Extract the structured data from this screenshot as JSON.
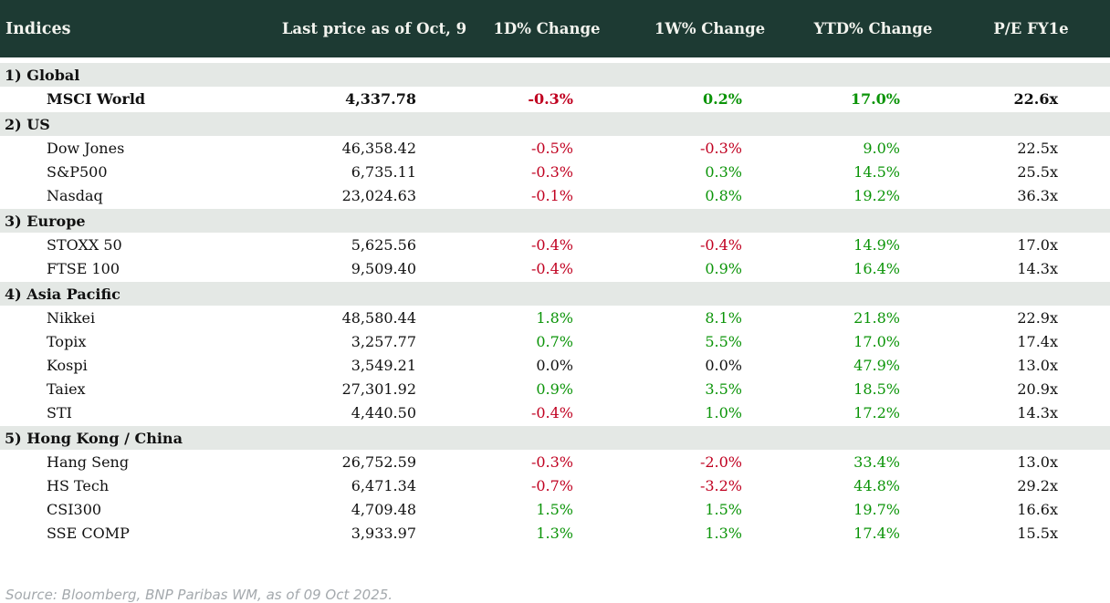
{
  "table": {
    "title": "Indices",
    "columns": [
      "Last price as of Oct, 9",
      "1D% Change",
      "1W% Change",
      "YTD% Change",
      "P/E FY1e"
    ],
    "sections": [
      {
        "label": "1) Global",
        "rows": [
          {
            "name": "MSCI World",
            "price": "4,337.78",
            "d1": "-0.3%",
            "w1": "0.2%",
            "ytd": "17.0%",
            "pe": "22.6x",
            "emphasis": true
          }
        ]
      },
      {
        "label": "2) US",
        "rows": [
          {
            "name": "Dow Jones",
            "price": "46,358.42",
            "d1": "-0.5%",
            "w1": "-0.3%",
            "ytd": "9.0%",
            "pe": "22.5x"
          },
          {
            "name": "S&P500",
            "price": "6,735.11",
            "d1": "-0.3%",
            "w1": "0.3%",
            "ytd": "14.5%",
            "pe": "25.5x"
          },
          {
            "name": "Nasdaq",
            "price": "23,024.63",
            "d1": "-0.1%",
            "w1": "0.8%",
            "ytd": "19.2%",
            "pe": "36.3x"
          }
        ]
      },
      {
        "label": "3) Europe",
        "rows": [
          {
            "name": "STOXX 50",
            "price": "5,625.56",
            "d1": "-0.4%",
            "w1": "-0.4%",
            "ytd": "14.9%",
            "pe": "17.0x"
          },
          {
            "name": "FTSE 100",
            "price": "9,509.40",
            "d1": "-0.4%",
            "w1": "0.9%",
            "ytd": "16.4%",
            "pe": "14.3x"
          }
        ]
      },
      {
        "label": "4) Asia Pacific",
        "rows": [
          {
            "name": "Nikkei",
            "price": "48,580.44",
            "d1": "1.8%",
            "w1": "8.1%",
            "ytd": "21.8%",
            "pe": "22.9x"
          },
          {
            "name": "Topix",
            "price": "3,257.77",
            "d1": "0.7%",
            "w1": "5.5%",
            "ytd": "17.0%",
            "pe": "17.4x"
          },
          {
            "name": "Kospi",
            "price": "3,549.21",
            "d1": "0.0%",
            "w1": "0.0%",
            "ytd": "47.9%",
            "pe": "13.0x"
          },
          {
            "name": "Taiex",
            "price": "27,301.92",
            "d1": "0.9%",
            "w1": "3.5%",
            "ytd": "18.5%",
            "pe": "20.9x"
          },
          {
            "name": "STI",
            "price": "4,440.50",
            "d1": "-0.4%",
            "w1": "1.0%",
            "ytd": "17.2%",
            "pe": "14.3x"
          }
        ]
      },
      {
        "label": "5) Hong Kong / China",
        "rows": [
          {
            "name": "Hang Seng",
            "price": "26,752.59",
            "d1": "-0.3%",
            "w1": "-2.0%",
            "ytd": "33.4%",
            "pe": "13.0x"
          },
          {
            "name": "HS Tech",
            "price": "6,471.34",
            "d1": "-0.7%",
            "w1": "-3.2%",
            "ytd": "44.8%",
            "pe": "29.2x"
          },
          {
            "name": "CSI300",
            "price": "4,709.48",
            "d1": "1.5%",
            "w1": "1.5%",
            "ytd": "19.7%",
            "pe": "16.6x"
          },
          {
            "name": "SSE COMP",
            "price": "3,933.97",
            "d1": "1.3%",
            "w1": "1.3%",
            "ytd": "17.4%",
            "pe": "15.5x"
          }
        ]
      }
    ]
  },
  "footer": {
    "source": "Source: Bloomberg, BNP Paribas WM, as of 09 Oct 2025."
  },
  "colors": {
    "header_bg": "#1d3a33",
    "header_text": "#f2f3ee",
    "section_bg": "#e4e8e5",
    "positive": "#0b9408",
    "negative": "#c00020",
    "neutral": "#111111",
    "source_text": "#a4a9ad"
  }
}
